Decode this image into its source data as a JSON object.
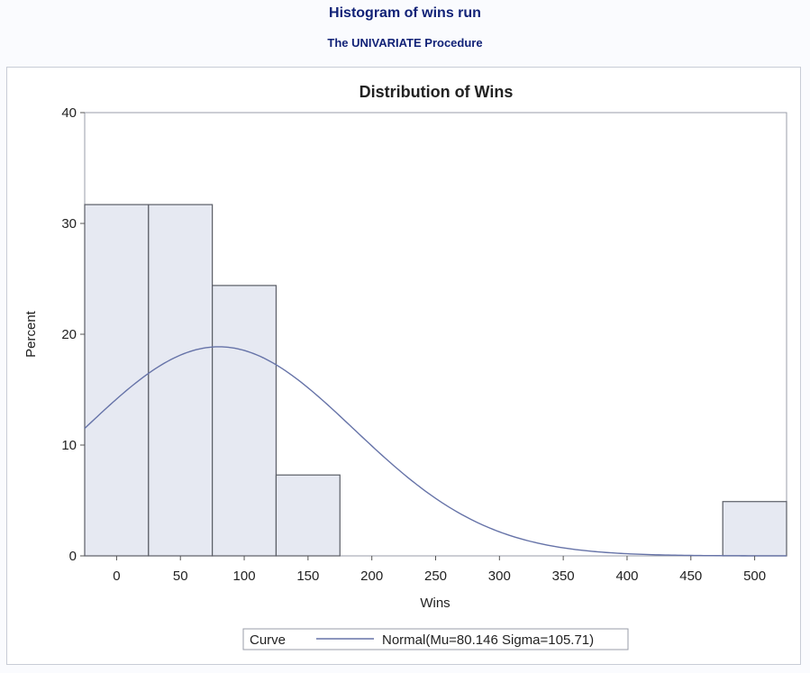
{
  "page": {
    "title": "Histogram of wins run",
    "subtitle": "The UNIVARIATE Procedure"
  },
  "colors": {
    "bar_fill": "#e6e9f2",
    "bar_stroke": "#5a5d66",
    "curve": "#6673a8",
    "title": "#112277"
  },
  "chart_data": {
    "type": "bar",
    "title": "Distribution of Wins",
    "xlabel": "Wins",
    "ylabel": "Percent",
    "xlim": [
      -25,
      525
    ],
    "ylim": [
      0,
      40
    ],
    "xticks": [
      0,
      50,
      100,
      150,
      200,
      250,
      300,
      350,
      400,
      450,
      500
    ],
    "yticks": [
      0,
      10,
      20,
      30,
      40
    ],
    "bin_width": 50,
    "bins": [
      {
        "center": 0,
        "value": 31.7
      },
      {
        "center": 50,
        "value": 31.7
      },
      {
        "center": 100,
        "value": 24.4
      },
      {
        "center": 150,
        "value": 7.3
      },
      {
        "center": 500,
        "value": 4.9
      }
    ],
    "curve": {
      "type": "normal",
      "mu": 80.146,
      "sigma": 105.71
    },
    "legend": {
      "placement": "bottom",
      "title": "Curve",
      "label": "Normal(Mu=80.146 Sigma=105.71)"
    },
    "grid": false
  }
}
